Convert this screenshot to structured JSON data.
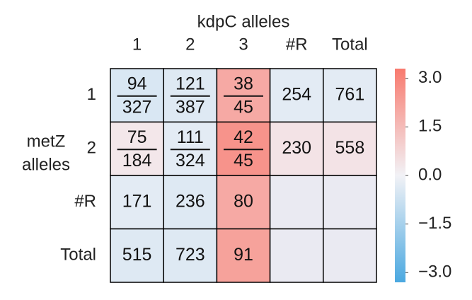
{
  "chart_data": {
    "type": "heatmap",
    "title": "kdpC alleles",
    "y_label": [
      "metZ",
      "alleles"
    ],
    "columns": [
      "1",
      "2",
      "3",
      "#R",
      "Total"
    ],
    "rows": [
      "1",
      "2",
      "#R",
      "Total"
    ],
    "cells": [
      [
        [
          94,
          327
        ],
        [
          121,
          387
        ],
        [
          38,
          45
        ],
        254,
        761
      ],
      [
        [
          75,
          184
        ],
        [
          111,
          324
        ],
        [
          42,
          45
        ],
        230,
        558
      ],
      [
        171,
        236,
        80,
        null,
        null
      ],
      [
        515,
        723,
        91,
        null,
        null
      ]
    ],
    "values": [
      [
        -0.5,
        -0.4,
        2.0,
        -0.3,
        -0.3
      ],
      [
        0.3,
        -0.3,
        2.6,
        0.4,
        0.4
      ],
      [
        -0.3,
        -0.4,
        2.0,
        null,
        null
      ],
      [
        -0.4,
        -0.4,
        2.2,
        null,
        null
      ]
    ],
    "colors": [
      "#4aa8e0",
      "#f2f2f6",
      "#f87a6e"
    ],
    "missing_color": "#eaeaf2",
    "zlim": [
      -3.3,
      3.3
    ],
    "zticks": [
      {
        "value": -3.0,
        "label": "−3.0"
      },
      {
        "value": -1.5,
        "label": "−1.5"
      },
      {
        "value": 0,
        "label": "0.0"
      },
      {
        "value": 1.5,
        "label": "1.5"
      },
      {
        "value": 3.0,
        "label": "3.0"
      }
    ]
  }
}
